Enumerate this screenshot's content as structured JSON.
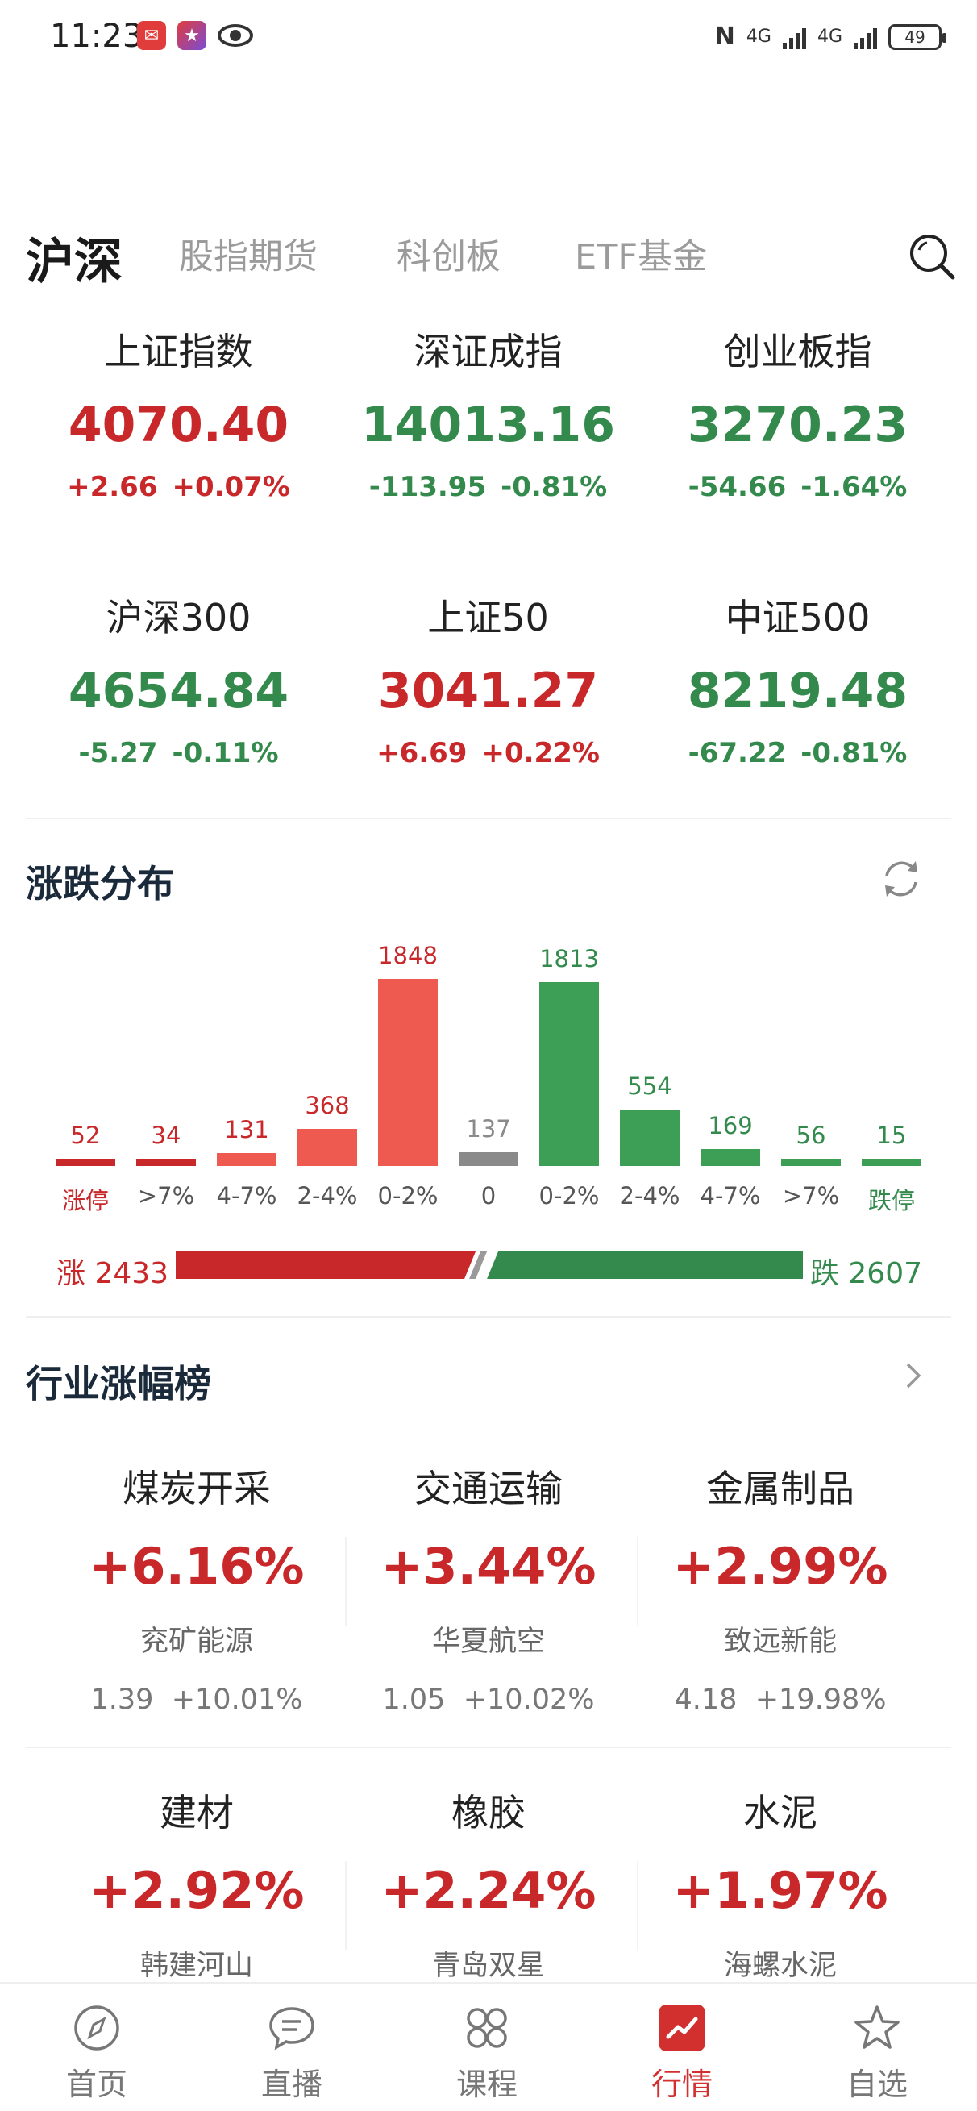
{
  "status_bar": {
    "time": "11:23",
    "net1": "4G",
    "net2": "4G",
    "battery": "49"
  },
  "tabs": [
    {
      "label": "沪深",
      "active": true
    },
    {
      "label": "股指期货",
      "active": false
    },
    {
      "label": "科创板",
      "active": false
    },
    {
      "label": "ETF基金",
      "active": false
    }
  ],
  "indices": [
    {
      "name": "上证指数",
      "value": "4070.40",
      "change": "+2.66",
      "pct": "+0.07%",
      "trend": "up"
    },
    {
      "name": "深证成指",
      "value": "14013.16",
      "change": "-113.95",
      "pct": "-0.81%",
      "trend": "down"
    },
    {
      "name": "创业板指",
      "value": "3270.23",
      "change": "-54.66",
      "pct": "-1.64%",
      "trend": "down"
    },
    {
      "name": "沪深300",
      "value": "4654.84",
      "change": "-5.27",
      "pct": "-0.11%",
      "trend": "down"
    },
    {
      "name": "上证50",
      "value": "3041.27",
      "change": "+6.69",
      "pct": "+0.22%",
      "trend": "up"
    },
    {
      "name": "中证500",
      "value": "8219.48",
      "change": "-67.22",
      "pct": "-0.81%",
      "trend": "down"
    }
  ],
  "distribution": {
    "title": "涨跌分布",
    "up_label": "涨 2433",
    "down_label": "跌 2607",
    "up_total": 2433,
    "down_total": 2607,
    "colors": {
      "up_strong": "#c8282a",
      "up_light": "#ee5a4f",
      "neutral": "#8a8a8a",
      "down": "#3d9e55"
    }
  },
  "chart_data": {
    "type": "bar",
    "categories": [
      "涨停",
      ">7%",
      "4-7%",
      "2-4%",
      "0-2%",
      "0",
      "0-2%",
      "2-4%",
      "4-7%",
      ">7%",
      "跌停"
    ],
    "values": [
      52,
      34,
      131,
      368,
      1848,
      137,
      1813,
      554,
      169,
      56,
      15
    ],
    "groups": [
      "up",
      "up",
      "up",
      "up",
      "up",
      "flat",
      "down",
      "down",
      "down",
      "down",
      "down"
    ],
    "title": "涨跌分布",
    "xlabel": "",
    "ylabel": "",
    "grid": false
  },
  "industry": {
    "title": "行业涨幅榜",
    "items": [
      {
        "name": "煤炭开采",
        "pct": "+6.16%",
        "stock": "兖矿能源",
        "price": "1.39",
        "stock_pct": "+10.01%"
      },
      {
        "name": "交通运输",
        "pct": "+3.44%",
        "stock": "华夏航空",
        "price": "1.05",
        "stock_pct": "+10.02%"
      },
      {
        "name": "金属制品",
        "pct": "+2.99%",
        "stock": "致远新能",
        "price": "4.18",
        "stock_pct": "+19.98%"
      },
      {
        "name": "建材",
        "pct": "+2.92%",
        "stock": "韩建河山"
      },
      {
        "name": "橡胶",
        "pct": "+2.24%",
        "stock": "青岛双星"
      },
      {
        "name": "水泥",
        "pct": "+1.97%",
        "stock": "海螺水泥"
      }
    ]
  },
  "bottom_nav": [
    {
      "label": "首页",
      "icon": "compass-icon",
      "active": false
    },
    {
      "label": "直播",
      "icon": "chat-bubble-icon",
      "active": false
    },
    {
      "label": "课程",
      "icon": "grid-flower-icon",
      "active": false
    },
    {
      "label": "行情",
      "icon": "trend-chart-icon",
      "active": true
    },
    {
      "label": "自选",
      "icon": "star-icon",
      "active": false
    }
  ]
}
